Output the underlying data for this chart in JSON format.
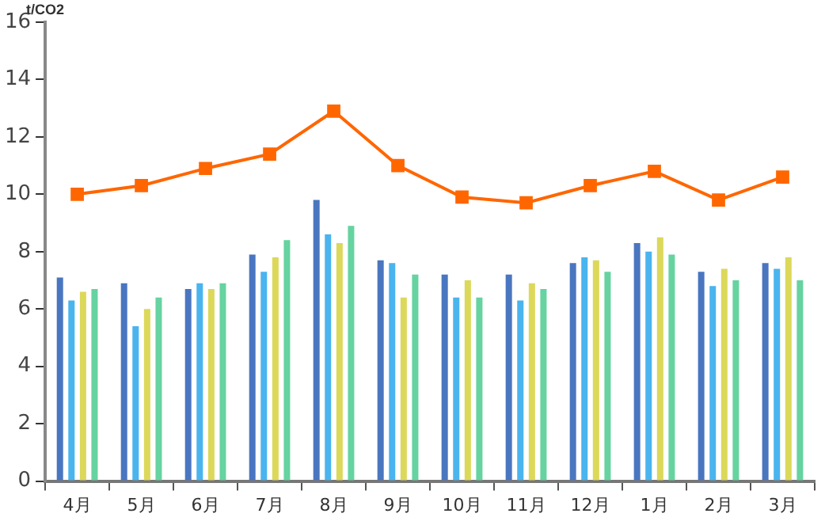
{
  "chart_data": {
    "type": "bar",
    "ylabel": "t/CO2",
    "categories": [
      "4月",
      "5月",
      "6月",
      "7月",
      "8月",
      "9月",
      "10月",
      "11月",
      "12月",
      "1月",
      "2月",
      "3月"
    ],
    "series": [
      {
        "color": "#4a76c0",
        "values": [
          7.1,
          6.9,
          6.7,
          7.9,
          9.8,
          7.7,
          7.2,
          7.2,
          7.6,
          8.3,
          7.3,
          7.6
        ]
      },
      {
        "color": "#4ab4ee",
        "values": [
          6.3,
          5.4,
          6.9,
          7.3,
          8.6,
          7.6,
          6.4,
          6.3,
          7.8,
          8.0,
          6.8,
          7.4
        ]
      },
      {
        "color": "#dcd85a",
        "values": [
          6.6,
          6.0,
          6.7,
          7.8,
          8.3,
          6.4,
          7.0,
          6.9,
          7.7,
          8.5,
          7.4,
          7.8
        ]
      },
      {
        "color": "#66d3a0",
        "values": [
          6.7,
          6.4,
          6.9,
          8.4,
          8.9,
          7.2,
          6.4,
          6.7,
          7.3,
          7.9,
          7.0,
          7.0
        ]
      },
      {
        "type": "line",
        "color": "#ff6600",
        "marker": "square",
        "values": [
          10.0,
          10.3,
          10.9,
          11.4,
          12.9,
          11.0,
          9.9,
          9.7,
          10.3,
          10.8,
          9.8,
          10.6
        ]
      }
    ],
    "ylim": [
      0,
      16
    ],
    "yticks": [
      0,
      2,
      4,
      6,
      8,
      10,
      12,
      14,
      16
    ],
    "grid": false,
    "legend": false
  }
}
